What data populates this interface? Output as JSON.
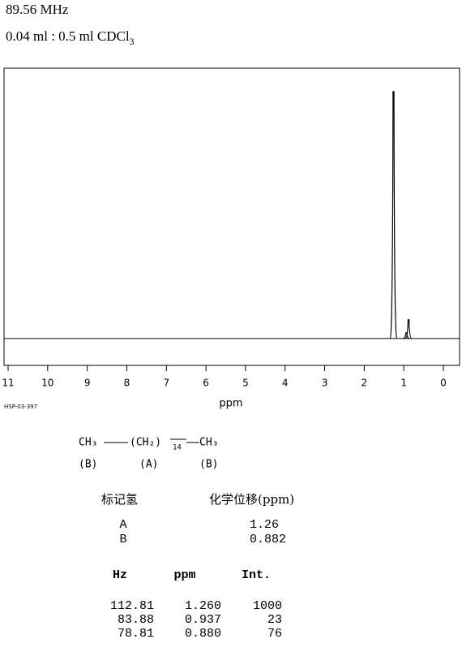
{
  "header": {
    "frequency": "89.56 MHz",
    "sample": "0.04 ml : 0.5 ml CDCl",
    "sample_subscript": "3"
  },
  "chart_data": {
    "type": "spectrum",
    "xlabel": "ppm",
    "code": "HSP-03-397",
    "x": [
      1.26,
      0.937,
      0.88
    ],
    "values": [
      1000,
      23,
      76
    ],
    "color": "#000000",
    "xlim": [
      11,
      0
    ],
    "xticks": [
      11,
      10,
      9,
      8,
      7,
      6,
      5,
      4,
      3,
      2,
      1,
      0
    ],
    "ylim": [
      -109,
      1095
    ]
  },
  "structure": {
    "groups": [
      "CH₃",
      "(CH₂)",
      "CH₃"
    ],
    "repeat": "14",
    "labels": [
      "(B)",
      "(A)",
      "(B)"
    ]
  },
  "assignments": {
    "header": [
      "标记氢",
      "化学位移(ppm)"
    ],
    "rows": [
      [
        "A",
        "1.26"
      ],
      [
        "B",
        "0.882"
      ]
    ]
  },
  "peaks": {
    "header": [
      "Hz",
      "ppm",
      "Int."
    ],
    "rows": [
      [
        "112.81",
        "1.260",
        "1000"
      ],
      [
        "83.88",
        "0.937",
        "23"
      ],
      [
        "78.81",
        "0.880",
        "76"
      ]
    ]
  }
}
